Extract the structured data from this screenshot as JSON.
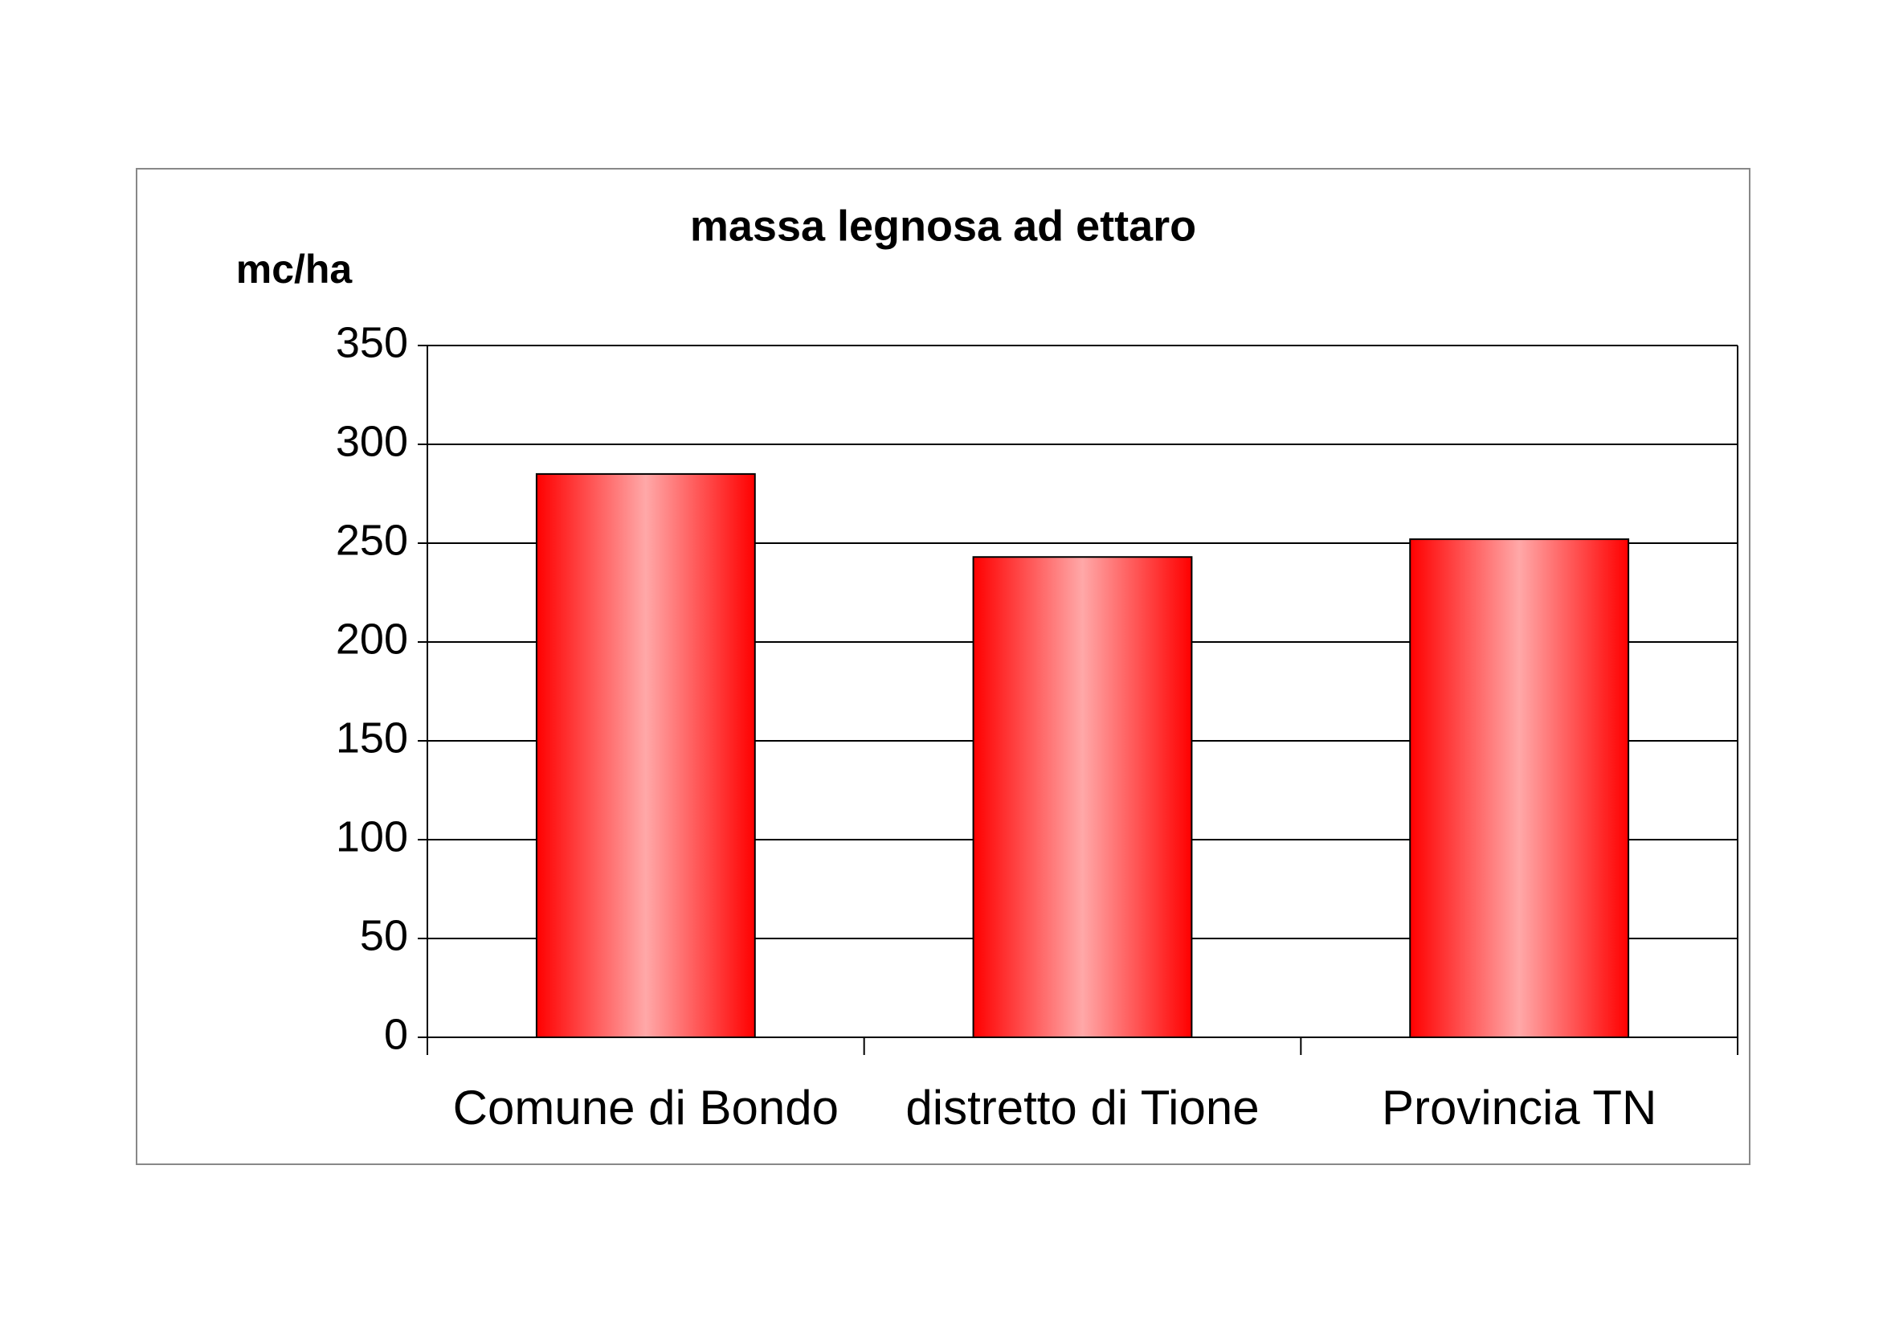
{
  "chart_data": {
    "type": "bar",
    "title": "massa legnosa ad ettaro",
    "y_label": "mc/ha",
    "categories": [
      "Comune di Bondo",
      "distretto di Tione",
      "Provincia TN"
    ],
    "values": [
      285,
      243,
      252
    ],
    "color": "#ff0000",
    "ylim": [
      0,
      350
    ],
    "yticks": [
      0,
      50,
      100,
      150,
      200,
      250,
      300,
      350
    ],
    "grid": true
  }
}
